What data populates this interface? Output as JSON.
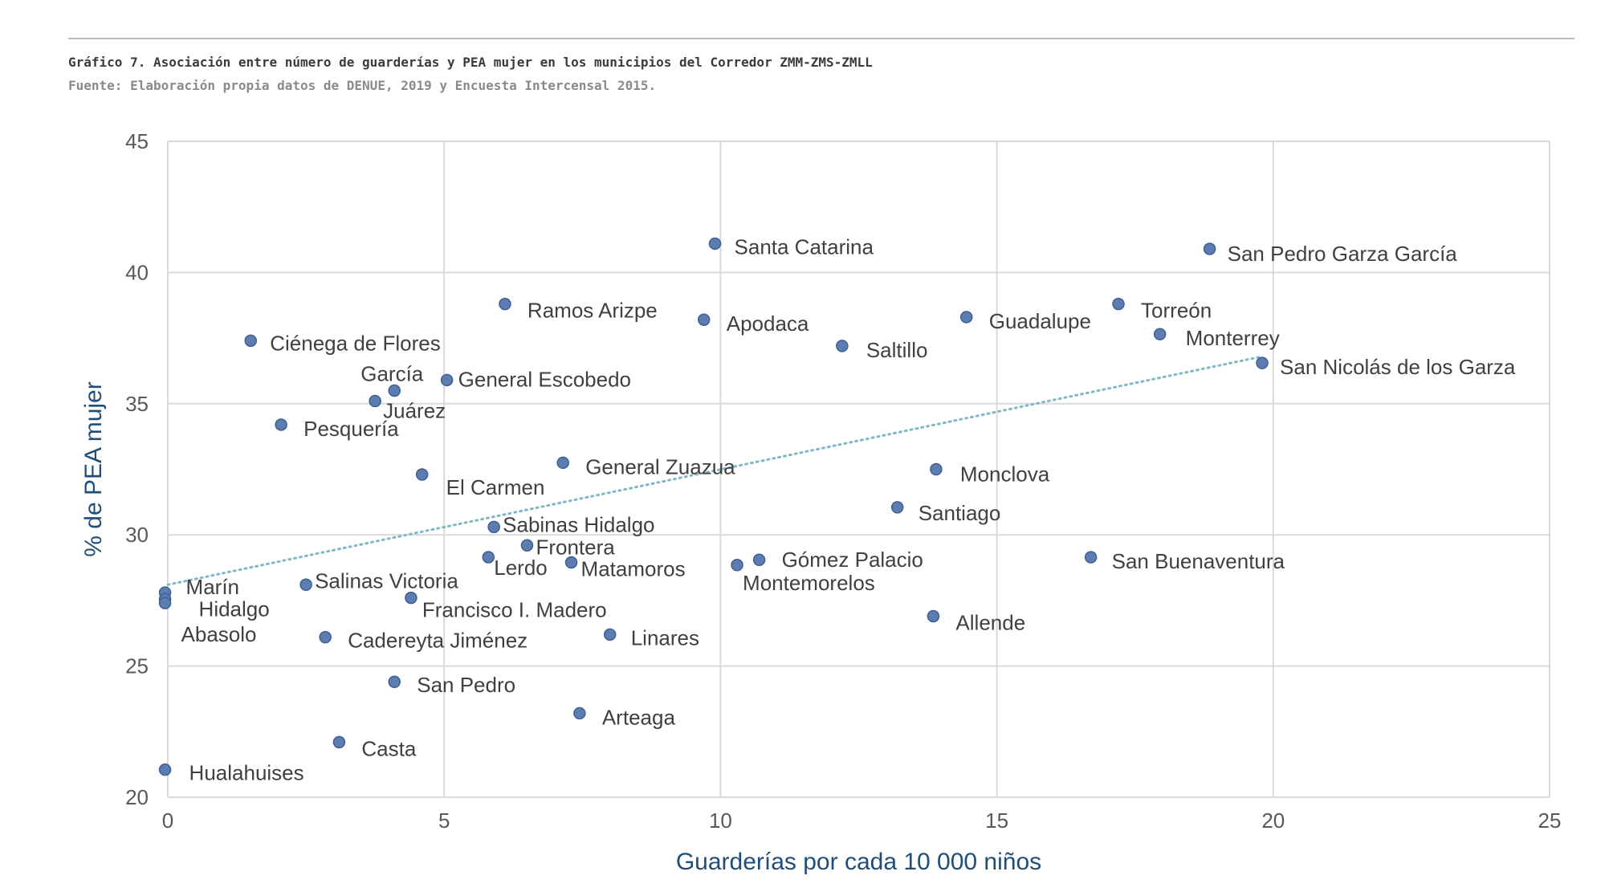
{
  "caption": {
    "title": "Gráfico 7. Asociación entre número de guarderías y PEA mujer en los municipios del Corredor ZMM-ZMS-ZMLL",
    "source": "Fuente: Elaboración propia datos de DENUE, 2019 y Encuesta Intercensal 2015."
  },
  "chart_data": {
    "type": "scatter",
    "title": "",
    "xlabel": "Guarderías por cada 10 000 niños",
    "ylabel": "% de PEA mujer",
    "xlim": [
      0,
      25
    ],
    "ylim": [
      20,
      45
    ],
    "xticks": [
      0,
      5,
      10,
      15,
      20,
      25
    ],
    "yticks": [
      20,
      25,
      30,
      35,
      40,
      45
    ],
    "grid": true,
    "legend": "none",
    "marker_color": "#5b7db1",
    "trendline": {
      "type": "linear",
      "style": "dotted",
      "color": "#7fb8c9",
      "x": [
        0,
        19.8
      ],
      "y": [
        28.1,
        36.8
      ]
    },
    "points": [
      {
        "label": "Santa Catarina",
        "x": 9.9,
        "y": 41.1
      },
      {
        "label": "San Pedro Garza García",
        "x": 18.85,
        "y": 40.9
      },
      {
        "label": "Ramos Arizpe",
        "x": 6.1,
        "y": 38.8
      },
      {
        "label": "Torreón",
        "x": 17.2,
        "y": 38.8
      },
      {
        "label": "Apodaca",
        "x": 9.7,
        "y": 38.2
      },
      {
        "label": "Guadalupe",
        "x": 14.45,
        "y": 38.3
      },
      {
        "label": "Monterrey",
        "x": 17.95,
        "y": 37.65
      },
      {
        "label": "Ciénega de Flores",
        "x": 1.5,
        "y": 37.4
      },
      {
        "label": "Saltillo",
        "x": 12.2,
        "y": 37.2
      },
      {
        "label": "San Nicolás de los Garza",
        "x": 19.8,
        "y": 36.55
      },
      {
        "label": "General Escobedo",
        "x": 5.05,
        "y": 35.9
      },
      {
        "label": "García",
        "x": 4.1,
        "y": 35.5
      },
      {
        "label": "Juárez",
        "x": 3.75,
        "y": 35.1
      },
      {
        "label": "Pesquería",
        "x": 2.05,
        "y": 34.2
      },
      {
        "label": "General Zuazua",
        "x": 7.15,
        "y": 32.75
      },
      {
        "label": "Monclova",
        "x": 13.9,
        "y": 32.5
      },
      {
        "label": "El Carmen",
        "x": 4.6,
        "y": 32.3
      },
      {
        "label": "Santiago",
        "x": 13.2,
        "y": 31.05
      },
      {
        "label": "Sabinas Hidalgo",
        "x": 5.9,
        "y": 30.3
      },
      {
        "label": "Frontera",
        "x": 6.5,
        "y": 29.6
      },
      {
        "label": "Lerdo",
        "x": 5.8,
        "y": 29.15
      },
      {
        "label": "San Buenaventura",
        "x": 16.7,
        "y": 29.15
      },
      {
        "label": "Gómez Palacio",
        "x": 10.7,
        "y": 29.05
      },
      {
        "label": "Matamoros",
        "x": 7.3,
        "y": 28.95
      },
      {
        "label": "Montemorelos",
        "x": 10.3,
        "y": 28.85
      },
      {
        "label": "Salinas Victoria",
        "x": 2.5,
        "y": 28.1
      },
      {
        "label": "Marín",
        "x": -0.05,
        "y": 27.8
      },
      {
        "label": "Francisco I. Madero",
        "x": 4.4,
        "y": 27.6
      },
      {
        "label": "Hidalgo",
        "x": -0.05,
        "y": 27.55
      },
      {
        "label": "Abasolo",
        "x": -0.05,
        "y": 27.4
      },
      {
        "label": "Allende",
        "x": 13.85,
        "y": 26.9
      },
      {
        "label": "Linares",
        "x": 8.0,
        "y": 26.2
      },
      {
        "label": "Cadereyta Jiménez",
        "x": 2.85,
        "y": 26.1
      },
      {
        "label": "San Pedro",
        "x": 4.1,
        "y": 24.4
      },
      {
        "label": "Arteaga",
        "x": 7.45,
        "y": 23.2
      },
      {
        "label": "Casta",
        "x": 3.1,
        "y": 22.1
      },
      {
        "label": "Hualahuises",
        "x": -0.05,
        "y": 21.05
      }
    ]
  }
}
